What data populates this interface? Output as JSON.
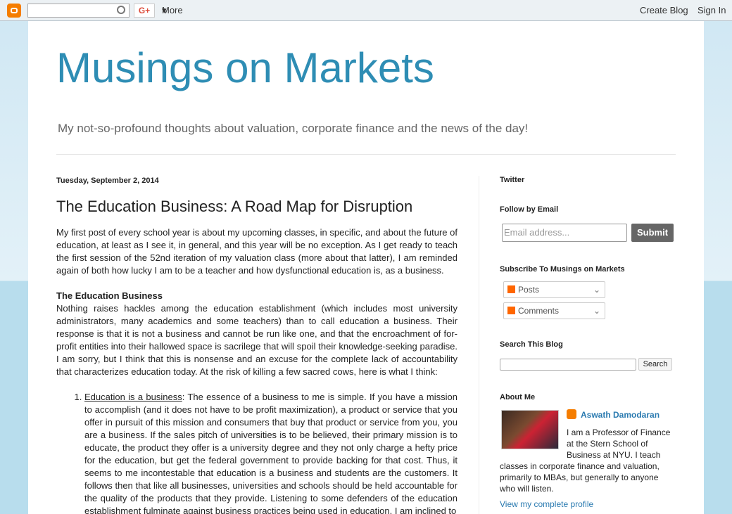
{
  "navbar": {
    "gplus": "G+",
    "more": "More",
    "create_blog": "Create Blog",
    "sign_in": "Sign In"
  },
  "header": {
    "title": "Musings on Markets",
    "description": "My not-so-profound thoughts about valuation, corporate finance and the news of the day!"
  },
  "post": {
    "date": "Tuesday, September 2, 2014",
    "title": "The Education Business: A Road Map for Disruption",
    "intro": "My first post of every school year is about my upcoming classes, in specific, and about the future of education, at least as I see it, in general, and this year will be no exception. As I get ready to teach the first session of the 52nd iteration of my valuation class (more about that latter), I am reminded again of both how lucky I am to be a teacher and how dysfunctional education is, as a business.",
    "section_heading": "The Education Business",
    "section_text": "Nothing raises hackles among the education establishment (which includes most university administrators, many academics and some teachers) than to call education a business. Their response is that it is not a business and cannot be run like one, and that the encroachment of for-profit entities into their hallowed space is sacrilege that will spoil their knowledge-seeking paradise. I am sorry, but I think that this is nonsense and an excuse for the complete lack of accountability that characterizes education today. At the risk of killing a few sacred cows, here is what I think:",
    "list": [
      {
        "link": "Education is a business",
        "text": ": The essence of a business to me is simple. If you have a mission to accomplish (and it does not have to be profit maximization), a product or service that you offer in pursuit of this mission and consumers that buy that product or service from you, you are a business. If the sales pitch of universities is to be believed, their primary mission is to educate, the product they offer is a university degree and they not only charge a hefty price for the education, but get the federal government to provide backing for that cost. Thus, it seems to me incontestable that education is a business and students are the customers. It follows then that like all businesses, universities and schools should be held accountable for the quality of the products that they provide. Listening to some defenders of the education establishment fulminate against business practices being used in education, I am inclined to"
      }
    ]
  },
  "sidebar": {
    "twitter": "Twitter",
    "follow": {
      "heading": "Follow by Email",
      "placeholder": "Email address...",
      "submit": "Submit"
    },
    "subscribe": {
      "heading": "Subscribe To Musings on Markets",
      "posts": "Posts",
      "comments": "Comments"
    },
    "search": {
      "heading": "Search This Blog",
      "button": "Search"
    },
    "about": {
      "heading": "About Me",
      "name": "Aswath Damodaran",
      "bio": "I am a Professor of Finance at the Stern School of Business at NYU. I teach classes in corporate finance and valuation, primarily to MBAs, but generally to anyone who will listen.",
      "profile_link": "View my complete profile"
    }
  }
}
